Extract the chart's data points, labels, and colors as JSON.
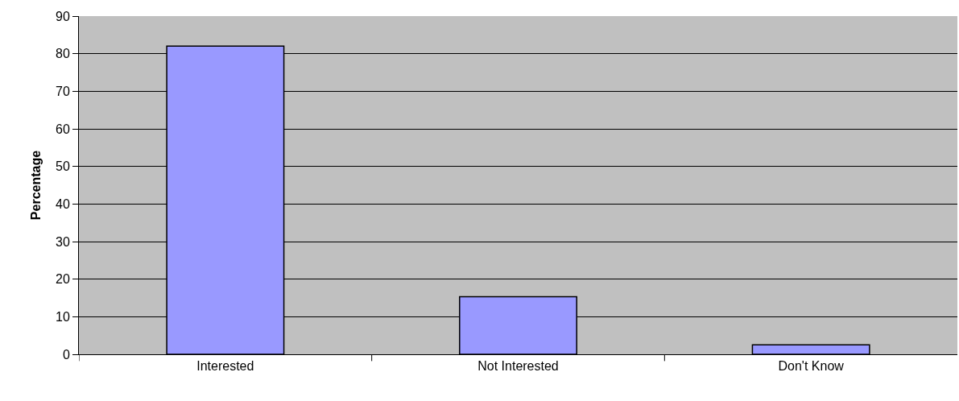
{
  "chart_data": {
    "type": "bar",
    "ylabel": "Percentage",
    "categories": [
      "Interested",
      "Not Interested",
      "Don't Know"
    ],
    "values": [
      82,
      15.3,
      2.5
    ],
    "color": "#9999ff",
    "ylim": [
      0,
      90
    ],
    "yticks": [
      0,
      10,
      20,
      30,
      40,
      50,
      60,
      70,
      80,
      90
    ],
    "grid": "y",
    "legend": false
  }
}
